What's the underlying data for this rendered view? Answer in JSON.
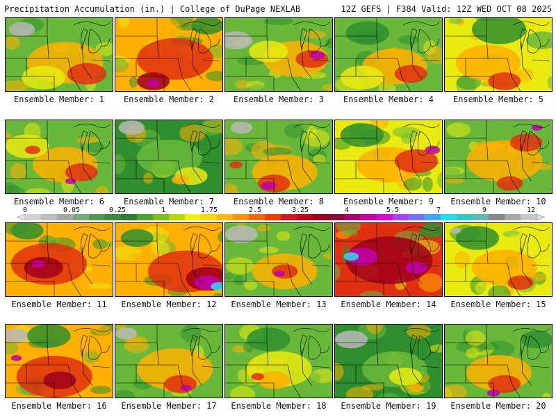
{
  "header": {
    "left_title": "Precipitation Accumulation (in.) | College of DuPage NEXLAB",
    "right_title": "12Z GEFS | F384 Valid: 12Z WED OCT 08 2025"
  },
  "colorbar": {
    "labels": [
      "0",
      "0.05",
      "0.25",
      "1",
      "1.75",
      "2.5",
      "3.25",
      "4",
      "5.5",
      "7",
      "9",
      "12"
    ],
    "colors": [
      "#d0d0d0",
      "#bdbdbd",
      "#a8a8a8",
      "#7aaa7a",
      "#4e9a4e",
      "#3a8c3a",
      "#2d7d2d",
      "#4aa52a",
      "#7cc21e",
      "#b5d800",
      "#eef200",
      "#ffd800",
      "#ffb800",
      "#ff9400",
      "#ff6a00",
      "#f03a00",
      "#d81818",
      "#c00018",
      "#a0001a",
      "#8a0a3a",
      "#aa0070",
      "#c800a0",
      "#e000d0",
      "#b040ff",
      "#7a70ff",
      "#40a8ff",
      "#20e0f0",
      "#30c8c0",
      "#60b8b0",
      "#888888",
      "#a8a8a8",
      "#c8c8c8"
    ]
  },
  "palette": {
    "green": "#2f8f2f",
    "lightgreen": "#6ab83a",
    "yellow": "#e8ea10",
    "orange": "#ffb000",
    "red": "#e03010",
    "darkred": "#a0001a",
    "magenta": "#c000b0",
    "cyan": "#30d8f0",
    "gray": "#b8b8b8",
    "lines": "#000000"
  },
  "members": [
    {
      "label": "Ensemble Member: 1",
      "base": "lightgreen",
      "blobs": [
        [
          "gray",
          0.15,
          0.15,
          0.12
        ],
        [
          "orange",
          0.55,
          0.6,
          0.35
        ],
        [
          "red",
          0.75,
          0.75,
          0.18
        ],
        [
          "yellow",
          0.35,
          0.8,
          0.2
        ]
      ]
    },
    {
      "label": "Ensemble Member: 2",
      "base": "orange",
      "blobs": [
        [
          "red",
          0.55,
          0.55,
          0.35
        ],
        [
          "darkred",
          0.35,
          0.85,
          0.15
        ],
        [
          "magenta",
          0.35,
          0.88,
          0.06
        ],
        [
          "green",
          0.85,
          0.1,
          0.15
        ]
      ]
    },
    {
      "label": "Ensemble Member: 3",
      "base": "lightgreen",
      "blobs": [
        [
          "gray",
          0.1,
          0.3,
          0.15
        ],
        [
          "orange",
          0.65,
          0.55,
          0.3
        ],
        [
          "red",
          0.8,
          0.55,
          0.15
        ],
        [
          "magenta",
          0.85,
          0.5,
          0.07
        ],
        [
          "yellow",
          0.4,
          0.45,
          0.18
        ]
      ]
    },
    {
      "label": "Ensemble Member: 4",
      "base": "lightgreen",
      "blobs": [
        [
          "green",
          0.3,
          0.2,
          0.2
        ],
        [
          "orange",
          0.55,
          0.65,
          0.3
        ],
        [
          "red",
          0.7,
          0.75,
          0.15
        ],
        [
          "yellow",
          0.25,
          0.8,
          0.2
        ]
      ]
    },
    {
      "label": "Ensemble Member: 5",
      "base": "yellow",
      "blobs": [
        [
          "green",
          0.5,
          0.15,
          0.25
        ],
        [
          "orange",
          0.4,
          0.6,
          0.3
        ],
        [
          "red",
          0.55,
          0.85,
          0.15
        ],
        [
          "lightgreen",
          0.9,
          0.3,
          0.15
        ]
      ]
    },
    {
      "label": "Ensemble Member: 6",
      "base": "lightgreen",
      "blobs": [
        [
          "orange",
          0.55,
          0.6,
          0.3
        ],
        [
          "red",
          0.7,
          0.7,
          0.15
        ],
        [
          "magenta",
          0.6,
          0.82,
          0.05
        ],
        [
          "yellow",
          0.2,
          0.35,
          0.2
        ],
        [
          "red",
          0.25,
          0.4,
          0.07
        ]
      ]
    },
    {
      "label": "Ensemble Member: 7",
      "base": "green",
      "blobs": [
        [
          "gray",
          0.15,
          0.1,
          0.12
        ],
        [
          "lightgreen",
          0.5,
          0.5,
          0.3
        ],
        [
          "yellow",
          0.7,
          0.75,
          0.15
        ],
        [
          "orange",
          0.6,
          0.8,
          0.08
        ]
      ]
    },
    {
      "label": "Ensemble Member: 8",
      "base": "lightgreen",
      "blobs": [
        [
          "gray",
          0.15,
          0.1,
          0.1
        ],
        [
          "orange",
          0.55,
          0.7,
          0.3
        ],
        [
          "red",
          0.45,
          0.85,
          0.15
        ],
        [
          "magenta",
          0.4,
          0.88,
          0.07
        ],
        [
          "red",
          0.1,
          0.6,
          0.06
        ]
      ]
    },
    {
      "label": "Ensemble Member: 9",
      "base": "yellow",
      "blobs": [
        [
          "green",
          0.25,
          0.2,
          0.2
        ],
        [
          "orange",
          0.5,
          0.6,
          0.3
        ],
        [
          "red",
          0.75,
          0.55,
          0.2
        ],
        [
          "magenta",
          0.9,
          0.4,
          0.07
        ]
      ]
    },
    {
      "label": "Ensemble Member: 10",
      "base": "lightgreen",
      "blobs": [
        [
          "orange",
          0.55,
          0.55,
          0.35
        ],
        [
          "red",
          0.75,
          0.3,
          0.15
        ],
        [
          "red",
          0.6,
          0.85,
          0.12
        ],
        [
          "magenta",
          0.85,
          0.1,
          0.05
        ]
      ]
    },
    {
      "label": "Ensemble Member: 11",
      "base": "orange",
      "blobs": [
        [
          "red",
          0.4,
          0.55,
          0.35
        ],
        [
          "darkred",
          0.35,
          0.6,
          0.18
        ],
        [
          "magenta",
          0.3,
          0.55,
          0.06
        ],
        [
          "green",
          0.2,
          0.1,
          0.15
        ]
      ]
    },
    {
      "label": "Ensemble Member: 12",
      "base": "orange",
      "blobs": [
        [
          "red",
          0.65,
          0.65,
          0.35
        ],
        [
          "darkred",
          0.85,
          0.75,
          0.2
        ],
        [
          "magenta",
          0.85,
          0.8,
          0.12
        ],
        [
          "cyan",
          0.95,
          0.85,
          0.07
        ],
        [
          "green",
          0.2,
          0.2,
          0.15
        ]
      ]
    },
    {
      "label": "Ensemble Member: 13",
      "base": "lightgreen",
      "blobs": [
        [
          "gray",
          0.15,
          0.15,
          0.15
        ],
        [
          "orange",
          0.55,
          0.65,
          0.3
        ],
        [
          "red",
          0.55,
          0.65,
          0.12
        ],
        [
          "magenta",
          0.5,
          0.68,
          0.05
        ]
      ]
    },
    {
      "label": "Ensemble Member: 14",
      "base": "red",
      "blobs": [
        [
          "darkred",
          0.5,
          0.5,
          0.4
        ],
        [
          "magenta",
          0.25,
          0.45,
          0.15
        ],
        [
          "cyan",
          0.15,
          0.45,
          0.07
        ],
        [
          "magenta",
          0.75,
          0.6,
          0.1
        ],
        [
          "green",
          0.9,
          0.1,
          0.12
        ]
      ]
    },
    {
      "label": "Ensemble Member: 15",
      "base": "yellow",
      "blobs": [
        [
          "green",
          0.3,
          0.2,
          0.2
        ],
        [
          "orange",
          0.55,
          0.6,
          0.3
        ],
        [
          "red",
          0.7,
          0.8,
          0.12
        ],
        [
          "gray",
          0.1,
          0.1,
          0.05
        ]
      ]
    },
    {
      "label": "Ensemble Member: 16",
      "base": "orange",
      "blobs": [
        [
          "gray",
          0.1,
          0.15,
          0.12
        ],
        [
          "green",
          0.4,
          0.15,
          0.2
        ],
        [
          "red",
          0.45,
          0.7,
          0.35
        ],
        [
          "darkred",
          0.5,
          0.75,
          0.15
        ],
        [
          "magenta",
          0.1,
          0.45,
          0.05
        ]
      ]
    },
    {
      "label": "Ensemble Member: 17",
      "base": "lightgreen",
      "blobs": [
        [
          "gray",
          0.1,
          0.12,
          0.1
        ],
        [
          "orange",
          0.55,
          0.6,
          0.35
        ],
        [
          "red",
          0.6,
          0.8,
          0.15
        ],
        [
          "magenta",
          0.65,
          0.85,
          0.05
        ]
      ]
    },
    {
      "label": "Ensemble Member: 18",
      "base": "lightgreen",
      "blobs": [
        [
          "green",
          0.4,
          0.2,
          0.2
        ],
        [
          "yellow",
          0.5,
          0.6,
          0.3
        ],
        [
          "orange",
          0.45,
          0.75,
          0.15
        ],
        [
          "red",
          0.3,
          0.7,
          0.06
        ]
      ]
    },
    {
      "label": "Ensemble Member: 19",
      "base": "green",
      "blobs": [
        [
          "gray",
          0.15,
          0.2,
          0.15
        ],
        [
          "lightgreen",
          0.55,
          0.6,
          0.3
        ],
        [
          "yellow",
          0.65,
          0.7,
          0.15
        ],
        [
          "orange",
          0.75,
          0.85,
          0.07
        ]
      ]
    },
    {
      "label": "Ensemble Member: 20",
      "base": "lightgreen",
      "blobs": [
        [
          "orange",
          0.5,
          0.65,
          0.3
        ],
        [
          "red",
          0.55,
          0.8,
          0.15
        ],
        [
          "magenta",
          0.45,
          0.92,
          0.06
        ],
        [
          "green",
          0.85,
          0.2,
          0.15
        ]
      ]
    }
  ]
}
